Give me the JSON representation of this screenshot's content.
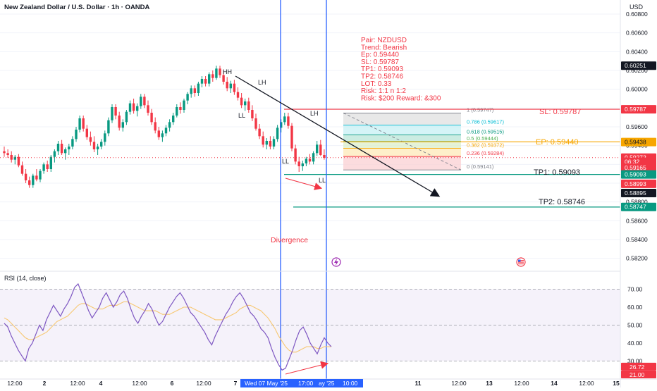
{
  "header": {
    "symbol_title": "New Zealand Dollar / U.S. Dollar · 1h · OANDA",
    "currency": "USD"
  },
  "trade_box": {
    "lines": [
      "Pair: NZDUSD",
      "Trend: Bearish",
      "Ep: 0.59440",
      "SL: 0.59787",
      "TP1: 0.59093",
      "TP2: 0.58746",
      "LOT: 0.33",
      "Risk:  1:1  n 1:2",
      "Risk: $200 Reward: &300"
    ]
  },
  "annotations": {
    "hh": "HH",
    "lh1": "LH",
    "ll1": "LL",
    "lh2": "LH",
    "ll2": "LL",
    "ll3": "LL",
    "divergence": "Divergence",
    "sl_label": "SL: 0.59787",
    "ep_label": "EP: 0.59440",
    "tp1_label": "TP1: 0.59093",
    "tp2_label": "TP2: 0.58746"
  },
  "price_axis": {
    "ticks": [
      "0.60800",
      "0.60600",
      "0.60400",
      "0.60200",
      "0.60000",
      "0.59800",
      "0.59600",
      "0.59400",
      "0.59200",
      "0.59000",
      "0.58800",
      "0.58600",
      "0.58400",
      "0.58200"
    ],
    "tick_values": [
      0.608,
      0.606,
      0.604,
      0.602,
      0.6,
      0.598,
      0.596,
      0.594,
      0.592,
      0.59,
      0.588,
      0.586,
      0.584,
      0.582
    ],
    "tags": [
      {
        "text": "0.60251",
        "value": 0.60251,
        "bg": "#131722",
        "fg": "#ffffff"
      },
      {
        "text": "0.59787",
        "value": 0.59787,
        "bg": "#f23645",
        "fg": "#ffffff"
      },
      {
        "text": "0.59438",
        "value": 0.59438,
        "bg": "#f7a600",
        "fg": "#131722"
      },
      {
        "text": "0.59272",
        "value": 0.59272,
        "bg": "#f23645",
        "fg": "#ffffff"
      },
      {
        "text": "06:32",
        "value": 0.59228,
        "bg": "#f23645",
        "fg": "#ffffff"
      },
      {
        "text": "0.59165",
        "value": 0.59165,
        "bg": "#f23645",
        "fg": "#ffffff"
      },
      {
        "text": "0.59093",
        "value": 0.59093,
        "bg": "#089981",
        "fg": "#ffffff"
      },
      {
        "text": "0.58993",
        "value": 0.58993,
        "bg": "#f23645",
        "fg": "#ffffff"
      },
      {
        "text": "0.58895",
        "value": 0.58895,
        "bg": "#131722",
        "fg": "#ffffff"
      },
      {
        "text": "0.58747",
        "value": 0.58747,
        "bg": "#089981",
        "fg": "#ffffff"
      }
    ]
  },
  "fib": {
    "levels": [
      {
        "label": "1 (0.59747)",
        "value": 0.59747,
        "color": "#787b86"
      },
      {
        "label": "0.786 (0.59617)",
        "value": 0.59617,
        "color": "#00bcd4"
      },
      {
        "label": "0.618 (0.59515)",
        "value": 0.59515,
        "color": "#089981"
      },
      {
        "label": "0.5 (0.59444)",
        "value": 0.59444,
        "color": "#4caf50"
      },
      {
        "label": "0.382 (0.59372)",
        "value": 0.59372,
        "color": "#f7a600"
      },
      {
        "label": "0.236 (0.59284)",
        "value": 0.59284,
        "color": "#f23645"
      },
      {
        "label": "0 (0.59141)",
        "value": 0.59141,
        "color": "#787b86"
      }
    ]
  },
  "rsi": {
    "title": "RSI (14, close)",
    "ticks": [
      "70.00",
      "60.00",
      "50.00",
      "40.00",
      "30.00"
    ],
    "tick_values": [
      70,
      60,
      50,
      40,
      30
    ],
    "tags": [
      {
        "text": "26.72",
        "value": 26.72,
        "bg": "#f23645",
        "fg": "#ffffff"
      },
      {
        "text": "21.00",
        "value": 21.0,
        "bg": "#f23645",
        "fg": "#ffffff"
      }
    ]
  },
  "time_axis": {
    "labels": [
      "12:00",
      "2",
      "12:00",
      "4",
      "12:00",
      "6",
      "12:00",
      "7",
      "11",
      "12:00",
      "13",
      "12:00",
      "14",
      "12:00",
      "15"
    ],
    "highlight": {
      "left": "Wed 07 May '25",
      "mid": "17:00",
      "right_part": "ay '25",
      "right": "10:00"
    }
  },
  "chart_data": [
    {
      "type": "candlestick",
      "title": "New Zealand Dollar / U.S. Dollar · 1h · OANDA",
      "ylim": [
        0.581,
        0.6095
      ],
      "series": [
        {
          "ohlc": [
            [
              0.5934,
              0.5939,
              0.5928,
              0.5932
            ],
            [
              0.5932,
              0.5936,
              0.5927,
              0.593
            ],
            [
              0.593,
              0.5934,
              0.5922,
              0.5925
            ],
            [
              0.5925,
              0.593,
              0.592,
              0.5928
            ],
            [
              0.5928,
              0.5931,
              0.5917,
              0.5919
            ],
            [
              0.5919,
              0.5923,
              0.5908,
              0.591
            ],
            [
              0.591,
              0.5915,
              0.59,
              0.5903
            ],
            [
              0.5903,
              0.5907,
              0.5895,
              0.5898
            ],
            [
              0.5898,
              0.591,
              0.5895,
              0.5908
            ],
            [
              0.5908,
              0.5915,
              0.5902,
              0.5904
            ],
            [
              0.5904,
              0.5915,
              0.5901,
              0.5913
            ],
            [
              0.5913,
              0.5922,
              0.591,
              0.592
            ],
            [
              0.592,
              0.5924,
              0.5912,
              0.5915
            ],
            [
              0.5915,
              0.593,
              0.5912,
              0.5928
            ],
            [
              0.5928,
              0.5936,
              0.5922,
              0.5934
            ],
            [
              0.5934,
              0.5945,
              0.593,
              0.5942
            ],
            [
              0.5942,
              0.5946,
              0.593,
              0.5932
            ],
            [
              0.5932,
              0.5938,
              0.5925,
              0.5936
            ],
            [
              0.5936,
              0.5942,
              0.593,
              0.5939
            ],
            [
              0.5939,
              0.595,
              0.5936,
              0.5947
            ],
            [
              0.5947,
              0.596,
              0.5944,
              0.5957
            ],
            [
              0.5957,
              0.5972,
              0.5954,
              0.5969
            ],
            [
              0.5969,
              0.5972,
              0.5955,
              0.5958
            ],
            [
              0.5958,
              0.5962,
              0.5946,
              0.5949
            ],
            [
              0.5949,
              0.5955,
              0.594,
              0.5944
            ],
            [
              0.5944,
              0.595,
              0.5933,
              0.5936
            ],
            [
              0.5936,
              0.5942,
              0.593,
              0.5939
            ],
            [
              0.5939,
              0.5947,
              0.5936,
              0.5944
            ],
            [
              0.5944,
              0.5956,
              0.594,
              0.5953
            ],
            [
              0.5953,
              0.597,
              0.595,
              0.5967
            ],
            [
              0.5967,
              0.5984,
              0.5964,
              0.5981
            ],
            [
              0.5981,
              0.5984,
              0.5968,
              0.5972
            ],
            [
              0.5972,
              0.5976,
              0.5956,
              0.5959
            ],
            [
              0.5959,
              0.5968,
              0.5955,
              0.5965
            ],
            [
              0.5965,
              0.5978,
              0.5962,
              0.5976
            ],
            [
              0.5976,
              0.5988,
              0.5973,
              0.5985
            ],
            [
              0.5985,
              0.599,
              0.5974,
              0.5977
            ],
            [
              0.5977,
              0.5985,
              0.5971,
              0.5982
            ],
            [
              0.5982,
              0.5995,
              0.5979,
              0.5992
            ],
            [
              0.5992,
              0.5995,
              0.598,
              0.5983
            ],
            [
              0.5983,
              0.5988,
              0.5972,
              0.5975
            ],
            [
              0.5975,
              0.5979,
              0.5962,
              0.5965
            ],
            [
              0.5965,
              0.597,
              0.5953,
              0.5956
            ],
            [
              0.5956,
              0.596,
              0.5946,
              0.5949
            ],
            [
              0.5949,
              0.5956,
              0.5944,
              0.5953
            ],
            [
              0.5953,
              0.5962,
              0.595,
              0.5959
            ],
            [
              0.5959,
              0.5968,
              0.5955,
              0.5965
            ],
            [
              0.5965,
              0.5975,
              0.5962,
              0.5972
            ],
            [
              0.5972,
              0.5984,
              0.597,
              0.5981
            ],
            [
              0.5981,
              0.5986,
              0.5974,
              0.5978
            ],
            [
              0.5978,
              0.599,
              0.5975,
              0.5988
            ],
            [
              0.5988,
              0.5997,
              0.5984,
              0.5995
            ],
            [
              0.5995,
              0.6004,
              0.5991,
              0.6001
            ],
            [
              0.6001,
              0.6004,
              0.5992,
              0.5996
            ],
            [
              0.5996,
              0.6008,
              0.5993,
              0.6006
            ],
            [
              0.6006,
              0.6014,
              0.6002,
              0.6011
            ],
            [
              0.6011,
              0.6014,
              0.6003,
              0.6006
            ],
            [
              0.6006,
              0.6018,
              0.6003,
              0.6016
            ],
            [
              0.6016,
              0.602,
              0.6008,
              0.6012
            ],
            [
              0.6012,
              0.6025,
              0.601,
              0.6022
            ],
            [
              0.6022,
              0.6025,
              0.6012,
              0.6015
            ],
            [
              0.6015,
              0.602,
              0.6005,
              0.6008
            ],
            [
              0.6008,
              0.6013,
              0.5998,
              0.6001
            ],
            [
              0.6001,
              0.6009,
              0.5996,
              0.6006
            ],
            [
              0.6006,
              0.601,
              0.5994,
              0.5997
            ],
            [
              0.5997,
              0.6002,
              0.5988,
              0.5991
            ],
            [
              0.5991,
              0.5996,
              0.598,
              0.5983
            ],
            [
              0.5983,
              0.599,
              0.5977,
              0.5987
            ],
            [
              0.5987,
              0.5991,
              0.5975,
              0.5978
            ],
            [
              0.5978,
              0.5983,
              0.5966,
              0.5969
            ],
            [
              0.5969,
              0.5974,
              0.5956,
              0.5958
            ],
            [
              0.5958,
              0.5963,
              0.5947,
              0.595
            ],
            [
              0.595,
              0.5955,
              0.5938,
              0.5941
            ],
            [
              0.5941,
              0.5948,
              0.5936,
              0.5945
            ],
            [
              0.5945,
              0.595,
              0.5936,
              0.5939
            ],
            [
              0.5939,
              0.595,
              0.5936,
              0.5947
            ],
            [
              0.5947,
              0.5962,
              0.5944,
              0.5959
            ],
            [
              0.5959,
              0.5968,
              0.5954,
              0.5965
            ],
            [
              0.5965,
              0.5975,
              0.5962,
              0.5971
            ],
            [
              0.5971,
              0.5975,
              0.5958,
              0.5961
            ],
            [
              0.5961,
              0.5964,
              0.5934,
              0.5937
            ],
            [
              0.5937,
              0.5941,
              0.592,
              0.5923
            ],
            [
              0.5923,
              0.5928,
              0.5912,
              0.5918
            ],
            [
              0.5918,
              0.5924,
              0.5913,
              0.5921
            ],
            [
              0.5921,
              0.5928,
              0.5918,
              0.5926
            ],
            [
              0.5926,
              0.5931,
              0.592,
              0.5923
            ],
            [
              0.5923,
              0.5934,
              0.592,
              0.5932
            ],
            [
              0.5932,
              0.5945,
              0.5929,
              0.5941
            ],
            [
              0.5941,
              0.5946,
              0.5929,
              0.593
            ],
            [
              0.593,
              0.5936,
              0.5925,
              0.5927
            ]
          ]
        }
      ]
    },
    {
      "type": "line",
      "title": "RSI (14, close)",
      "ylim": [
        20,
        80
      ],
      "series": [
        {
          "values": [
            51,
            49,
            44,
            40,
            36,
            33,
            30,
            37,
            40,
            45,
            50,
            47,
            53,
            57,
            61,
            58,
            55,
            59,
            62,
            66,
            71,
            73,
            68,
            63,
            58,
            54,
            57,
            60,
            65,
            68,
            64,
            60,
            63,
            67,
            69,
            65,
            59,
            54,
            51,
            55,
            58,
            62,
            59,
            54,
            50,
            52,
            56,
            60,
            63,
            66,
            68,
            65,
            61,
            57,
            55,
            52,
            49,
            46,
            42,
            39,
            44,
            48,
            52,
            56,
            59,
            63,
            66,
            68,
            65,
            61,
            57,
            55,
            52,
            48,
            46,
            43,
            37,
            32,
            28,
            25,
            26,
            31,
            36,
            42,
            47,
            49,
            45,
            40,
            37,
            34,
            39,
            43,
            40,
            38
          ]
        },
        {
          "values": [
            54,
            53,
            51,
            49,
            47,
            45,
            43,
            42,
            42,
            43,
            44,
            45,
            46,
            48,
            50,
            52,
            53,
            54,
            55,
            57,
            59,
            61,
            62,
            62,
            61,
            60,
            59,
            59,
            59,
            60,
            61,
            61,
            61,
            62,
            63,
            63,
            62,
            61,
            60,
            59,
            58,
            58,
            58,
            58,
            57,
            56,
            56,
            56,
            57,
            58,
            59,
            60,
            60,
            60,
            59,
            58,
            57,
            56,
            55,
            54,
            53,
            53,
            53,
            54,
            55,
            56,
            57,
            59,
            60,
            61,
            61,
            60,
            59,
            58,
            56,
            54,
            51,
            48,
            44,
            41,
            38,
            36,
            35,
            35,
            36,
            37,
            38,
            38,
            38,
            37,
            37,
            38,
            38,
            38
          ]
        }
      ]
    }
  ]
}
